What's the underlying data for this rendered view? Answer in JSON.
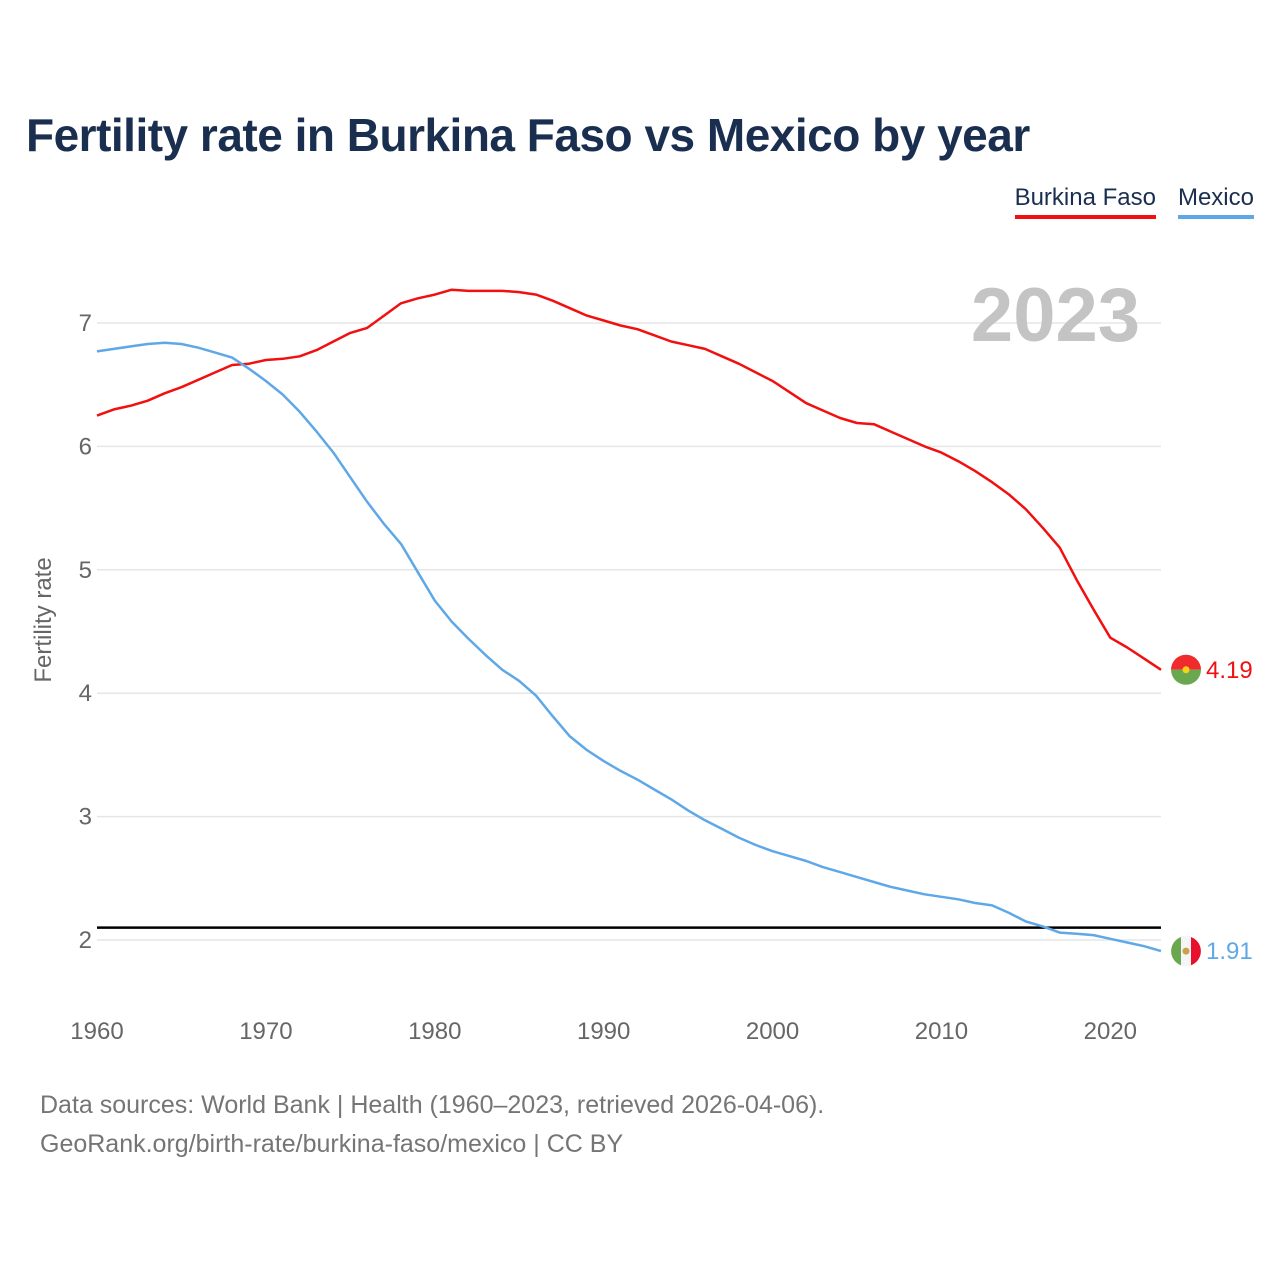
{
  "title": "Fertility rate in Burkina Faso vs Mexico by year",
  "legend": [
    {
      "label": "Burkina Faso",
      "color": "#f20f0f"
    },
    {
      "label": "Mexico",
      "color": "#5fa8e8"
    }
  ],
  "footer": {
    "line1": "Data sources: World Bank | Health (1960–2023, retrieved 2026-04-06).",
    "line2": "GeoRank.org/birth-rate/burkina-faso/mexico | CC BY"
  },
  "chart_data": {
    "type": "line",
    "title": "Fertility rate in Burkina Faso vs Mexico by year",
    "xlabel": "",
    "ylabel": "Fertility rate",
    "year_label": "2023",
    "xlim": [
      1960,
      2023
    ],
    "ylim": [
      1.5,
      7.6
    ],
    "x_ticks": [
      1960,
      1970,
      1980,
      1990,
      2000,
      2010,
      2020
    ],
    "y_ticks": [
      2,
      3,
      4,
      5,
      6,
      7
    ],
    "reference_line": 2.1,
    "grid": true,
    "x": [
      1960,
      1961,
      1962,
      1963,
      1964,
      1965,
      1966,
      1967,
      1968,
      1969,
      1970,
      1971,
      1972,
      1973,
      1974,
      1975,
      1976,
      1977,
      1978,
      1979,
      1980,
      1981,
      1982,
      1983,
      1984,
      1985,
      1986,
      1987,
      1988,
      1989,
      1990,
      1991,
      1992,
      1993,
      1994,
      1995,
      1996,
      1997,
      1998,
      1999,
      2000,
      2001,
      2002,
      2003,
      2004,
      2005,
      2006,
      2007,
      2008,
      2009,
      2010,
      2011,
      2012,
      2013,
      2014,
      2015,
      2016,
      2017,
      2018,
      2019,
      2020,
      2021,
      2022,
      2023
    ],
    "series": [
      {
        "name": "Burkina Faso",
        "color": "#f20f0f",
        "end_label": "4.19",
        "values": [
          6.25,
          6.3,
          6.33,
          6.37,
          6.43,
          6.48,
          6.54,
          6.6,
          6.66,
          6.67,
          6.7,
          6.71,
          6.73,
          6.78,
          6.85,
          6.92,
          6.96,
          7.06,
          7.16,
          7.2,
          7.23,
          7.27,
          7.26,
          7.26,
          7.26,
          7.25,
          7.23,
          7.18,
          7.12,
          7.06,
          7.02,
          6.98,
          6.95,
          6.9,
          6.85,
          6.82,
          6.79,
          6.73,
          6.67,
          6.6,
          6.53,
          6.44,
          6.35,
          6.29,
          6.23,
          6.19,
          6.18,
          6.12,
          6.06,
          6.0,
          5.95,
          5.88,
          5.8,
          5.71,
          5.61,
          5.49,
          5.34,
          5.18,
          4.92,
          4.68,
          4.45,
          4.37,
          4.28,
          4.19
        ]
      },
      {
        "name": "Mexico",
        "color": "#5fa8e8",
        "end_label": "1.91",
        "values": [
          6.77,
          6.79,
          6.81,
          6.83,
          6.84,
          6.83,
          6.8,
          6.76,
          6.72,
          6.63,
          6.53,
          6.42,
          6.28,
          6.12,
          5.95,
          5.75,
          5.55,
          5.37,
          5.21,
          4.98,
          4.75,
          4.58,
          4.44,
          4.31,
          4.19,
          4.1,
          3.98,
          3.81,
          3.65,
          3.54,
          3.45,
          3.37,
          3.3,
          3.22,
          3.14,
          3.05,
          2.97,
          2.9,
          2.83,
          2.77,
          2.72,
          2.68,
          2.64,
          2.59,
          2.55,
          2.51,
          2.47,
          2.43,
          2.4,
          2.37,
          2.35,
          2.33,
          2.3,
          2.28,
          2.22,
          2.15,
          2.11,
          2.06,
          2.05,
          2.04,
          2.01,
          1.98,
          1.95,
          1.91
        ]
      }
    ]
  }
}
